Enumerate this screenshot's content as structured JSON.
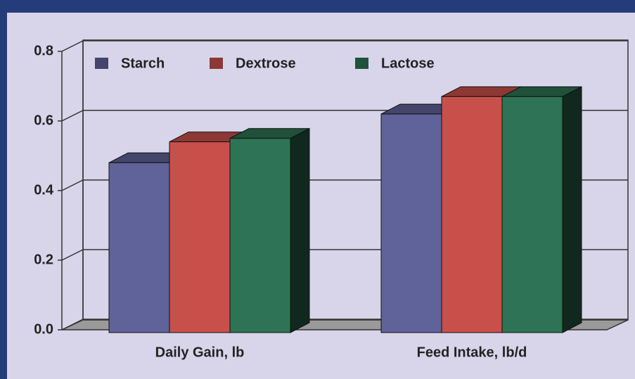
{
  "chart_data": {
    "type": "bar3d",
    "categories": [
      "Daily Gain, lb",
      "Feed Intake, lb/d"
    ],
    "series": [
      {
        "name": "Starch",
        "color": "#5f6399",
        "values": [
          0.48,
          0.62
        ]
      },
      {
        "name": "Dextrose",
        "color": "#c9504a",
        "values": [
          0.54,
          0.67
        ]
      },
      {
        "name": "Lactose",
        "color": "#2e7355",
        "values": [
          0.55,
          0.67
        ]
      }
    ],
    "ylim": [
      0,
      0.8
    ],
    "yticks": [
      {
        "value": 0,
        "label": "0.0"
      },
      0.2,
      0.4,
      0.6,
      0.8
    ],
    "grid": true,
    "legend": "top"
  }
}
